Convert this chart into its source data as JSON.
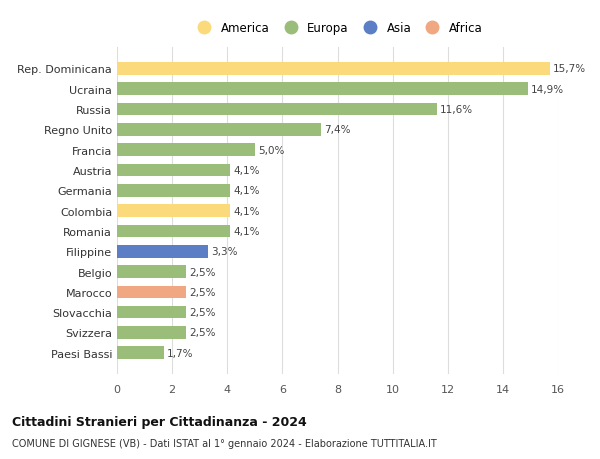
{
  "categories": [
    "Rep. Dominicana",
    "Ucraina",
    "Russia",
    "Regno Unito",
    "Francia",
    "Austria",
    "Germania",
    "Colombia",
    "Romania",
    "Filippine",
    "Belgio",
    "Marocco",
    "Slovacchia",
    "Svizzera",
    "Paesi Bassi"
  ],
  "values": [
    15.7,
    14.9,
    11.6,
    7.4,
    5.0,
    4.1,
    4.1,
    4.1,
    4.1,
    3.3,
    2.5,
    2.5,
    2.5,
    2.5,
    1.7
  ],
  "labels": [
    "15,7%",
    "14,9%",
    "11,6%",
    "7,4%",
    "5,0%",
    "4,1%",
    "4,1%",
    "4,1%",
    "4,1%",
    "3,3%",
    "2,5%",
    "2,5%",
    "2,5%",
    "2,5%",
    "1,7%"
  ],
  "colors": [
    "#FADA7A",
    "#9BBD7A",
    "#9BBD7A",
    "#9BBD7A",
    "#9BBD7A",
    "#9BBD7A",
    "#9BBD7A",
    "#FADA7A",
    "#9BBD7A",
    "#5B7EC4",
    "#9BBD7A",
    "#F0A882",
    "#9BBD7A",
    "#9BBD7A",
    "#9BBD7A"
  ],
  "continent_colors": {
    "America": "#FADA7A",
    "Europa": "#9BBD7A",
    "Asia": "#5B7EC4",
    "Africa": "#F0A882"
  },
  "xlim": [
    0,
    16
  ],
  "xticks": [
    0,
    2,
    4,
    6,
    8,
    10,
    12,
    14,
    16
  ],
  "title": "Cittadini Stranieri per Cittadinanza - 2024",
  "subtitle": "COMUNE DI GIGNESE (VB) - Dati ISTAT al 1° gennaio 2024 - Elaborazione TUTTITALIA.IT",
  "background_color": "#ffffff",
  "grid_color": "#dddddd",
  "bar_height": 0.62
}
